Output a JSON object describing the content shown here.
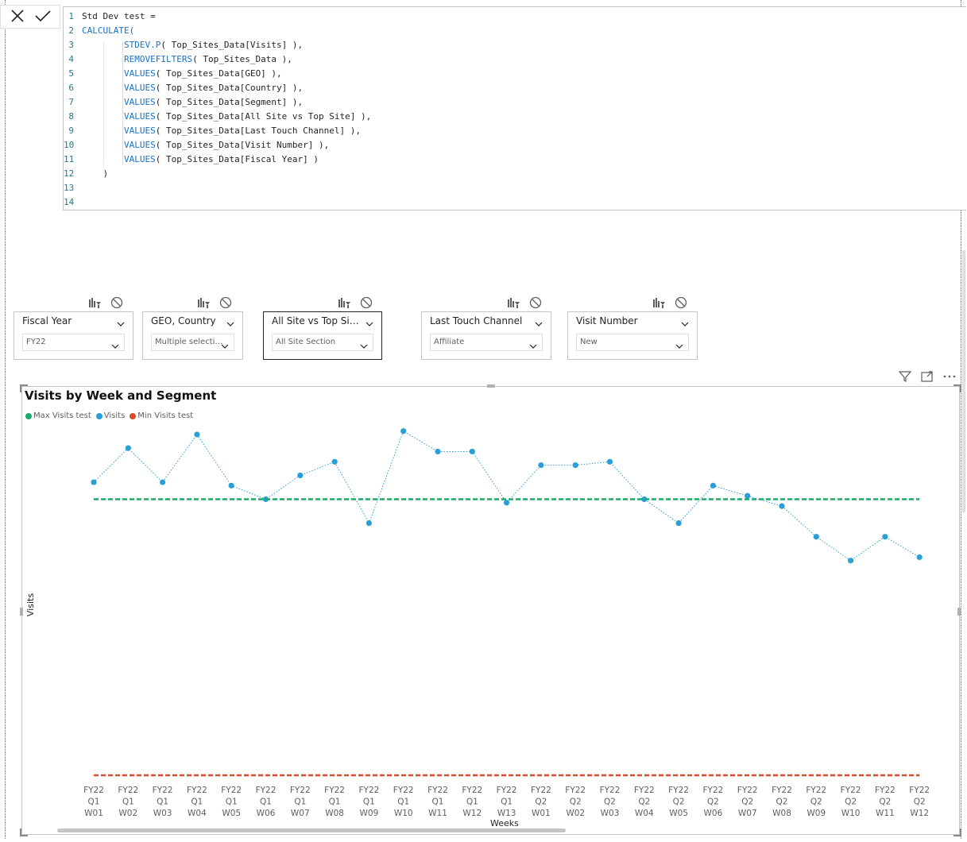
{
  "formula_bar": {
    "cancel_icon": "x-icon",
    "commit_icon": "check-icon",
    "lines": [
      {
        "n": "1",
        "segments": [
          {
            "t": "Std Dev test =",
            "kw": false
          }
        ]
      },
      {
        "n": "2",
        "segments": [
          {
            "t": "CALCULATE(",
            "kw": true
          }
        ]
      },
      {
        "n": "3",
        "segments": [
          {
            "t": "        ",
            "kw": false
          },
          {
            "t": "STDEV.P",
            "kw": true
          },
          {
            "t": "( Top_Sites_Data[Visits] ),",
            "kw": false
          }
        ]
      },
      {
        "n": "4",
        "segments": [
          {
            "t": "        ",
            "kw": false
          },
          {
            "t": "REMOVEFILTERS",
            "kw": true
          },
          {
            "t": "( Top_Sites_Data ),",
            "kw": false
          }
        ]
      },
      {
        "n": "5",
        "segments": [
          {
            "t": "        ",
            "kw": false
          },
          {
            "t": "VALUES",
            "kw": true
          },
          {
            "t": "( Top_Sites_Data[GEO] ),",
            "kw": false
          }
        ]
      },
      {
        "n": "6",
        "segments": [
          {
            "t": "        ",
            "kw": false
          },
          {
            "t": "VALUES",
            "kw": true
          },
          {
            "t": "( Top_Sites_Data[Country] ),",
            "kw": false
          }
        ]
      },
      {
        "n": "7",
        "segments": [
          {
            "t": "        ",
            "kw": false
          },
          {
            "t": "VALUES",
            "kw": true
          },
          {
            "t": "( Top_Sites_Data[Segment] ),",
            "kw": false
          }
        ]
      },
      {
        "n": "8",
        "segments": [
          {
            "t": "        ",
            "kw": false
          },
          {
            "t": "VALUES",
            "kw": true
          },
          {
            "t": "( Top_Sites_Data[All Site vs Top Site] ),",
            "kw": false
          }
        ]
      },
      {
        "n": "9",
        "segments": [
          {
            "t": "        ",
            "kw": false
          },
          {
            "t": "VALUES",
            "kw": true
          },
          {
            "t": "( Top_Sites_Data[Last Touch Channel] ),",
            "kw": false
          }
        ]
      },
      {
        "n": "10",
        "segments": [
          {
            "t": "        ",
            "kw": false
          },
          {
            "t": "VALUES",
            "kw": true
          },
          {
            "t": "( Top_Sites_Data[Visit Number] ),",
            "kw": false
          }
        ]
      },
      {
        "n": "11",
        "segments": [
          {
            "t": "        ",
            "kw": false
          },
          {
            "t": "VALUES",
            "kw": true
          },
          {
            "t": "( Top_Sites_Data[Fiscal Year] )",
            "kw": false
          }
        ]
      },
      {
        "n": "12",
        "segments": [
          {
            "t": "    )",
            "kw": false
          }
        ]
      },
      {
        "n": "13",
        "segments": []
      },
      {
        "n": "14",
        "segments": []
      }
    ]
  },
  "slicers": [
    {
      "title": "Fiscal Year",
      "value": "FY22",
      "active": false
    },
    {
      "title": "GEO, Country",
      "value": "Multiple selecti…",
      "active": false
    },
    {
      "title": "All Site vs Top Si…",
      "value": "All Site Section",
      "active": true
    },
    {
      "title": "Last Touch Channel",
      "value": "Affiliate",
      "active": false
    },
    {
      "title": "Visit Number",
      "value": "New",
      "active": false
    }
  ],
  "slicer_icons": [
    "format-painter-icon",
    "clear-selections-icon"
  ],
  "visual": {
    "title": "Visits by Week and Segment",
    "header_icons": [
      "filter-icon",
      "focus-mode-icon",
      "more-options-icon"
    ],
    "legend": [
      {
        "name": "Max Visits test",
        "color": "#1aab6b"
      },
      {
        "name": "Visits",
        "color": "#2a9fd6"
      },
      {
        "name": "Min Visits test",
        "color": "#d64b2a"
      }
    ],
    "yaxis_label": "Visits",
    "xaxis_label": "Weeks"
  },
  "chart_data": {
    "type": "line",
    "title": "Visits by Week and Segment",
    "xlabel": "Weeks",
    "ylabel": "Visits",
    "x": [
      [
        "FY22",
        "Q1",
        "W01"
      ],
      [
        "FY22",
        "Q1",
        "W02"
      ],
      [
        "FY22",
        "Q1",
        "W03"
      ],
      [
        "FY22",
        "Q1",
        "W04"
      ],
      [
        "FY22",
        "Q1",
        "W05"
      ],
      [
        "FY22",
        "Q1",
        "W06"
      ],
      [
        "FY22",
        "Q1",
        "W07"
      ],
      [
        "FY22",
        "Q1",
        "W08"
      ],
      [
        "FY22",
        "Q1",
        "W09"
      ],
      [
        "FY22",
        "Q1",
        "W10"
      ],
      [
        "FY22",
        "Q1",
        "W11"
      ],
      [
        "FY22",
        "Q1",
        "W12"
      ],
      [
        "FY22",
        "Q1",
        "W13"
      ],
      [
        "FY22",
        "Q2",
        "W01"
      ],
      [
        "FY22",
        "Q2",
        "W02"
      ],
      [
        "FY22",
        "Q2",
        "W03"
      ],
      [
        "FY22",
        "Q2",
        "W04"
      ],
      [
        "FY22",
        "Q2",
        "W05"
      ],
      [
        "FY22",
        "Q2",
        "W06"
      ],
      [
        "FY22",
        "Q2",
        "W07"
      ],
      [
        "FY22",
        "Q2",
        "W08"
      ],
      [
        "FY22",
        "Q2",
        "W09"
      ],
      [
        "FY22",
        "Q2",
        "W10"
      ],
      [
        "FY22",
        "Q2",
        "W11"
      ],
      [
        "FY22",
        "Q2",
        "W12"
      ]
    ],
    "ylim": [
      0,
      100
    ],
    "series": [
      {
        "name": "Visits",
        "color": "#2a9fd6",
        "style": "dotted-markers",
        "values": [
          86,
          96,
          86,
          100,
          85,
          81,
          88,
          92,
          74,
          101,
          95,
          95,
          80,
          91,
          91,
          92,
          81,
          74,
          85,
          82,
          79,
          70,
          63,
          70,
          64
        ]
      },
      {
        "name": "Max Visits test",
        "color": "#1aab6b",
        "style": "dashed",
        "values": [
          81,
          81,
          81,
          81,
          81,
          81,
          81,
          81,
          81,
          81,
          81,
          81,
          81,
          81,
          81,
          81,
          81,
          81,
          81,
          81,
          81,
          81,
          81,
          81,
          81
        ]
      },
      {
        "name": "Min Visits test",
        "color": "#d64b2a",
        "style": "dashed",
        "values": [
          0,
          0,
          0,
          0,
          0,
          0,
          0,
          0,
          0,
          0,
          0,
          0,
          0,
          0,
          0,
          0,
          0,
          0,
          0,
          0,
          0,
          0,
          0,
          0,
          0
        ]
      }
    ],
    "grid": false,
    "legend_position": "top-left"
  }
}
